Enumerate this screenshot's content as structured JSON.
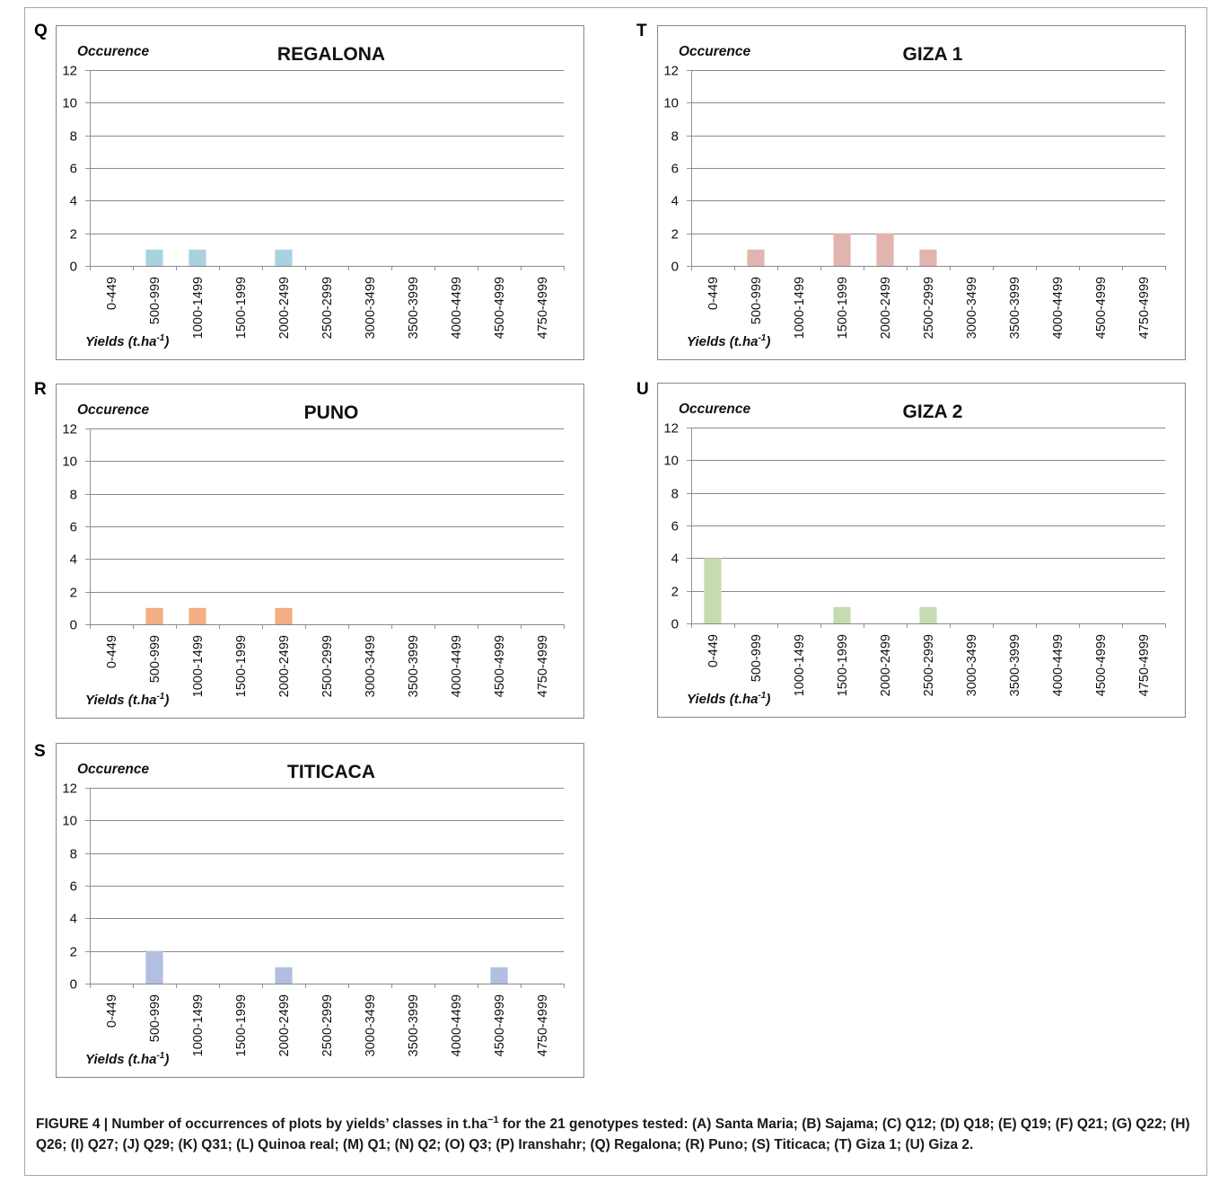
{
  "panels": [
    {
      "letter": "Q"
    },
    {
      "letter": "T"
    },
    {
      "letter": "R"
    },
    {
      "letter": "U"
    },
    {
      "letter": "S"
    }
  ],
  "caption": {
    "prefix": "FIGURE 4 | Number of occurrences of plots by yields’ classes in t.ha",
    "superscript": "−1",
    "rest": " for the 21 genotypes tested: (A) Santa Maria; (B) Sajama; (C) Q12; (D) Q18; (E) Q19; (F) Q21; (G) Q22; (H) Q26; (I) Q27; (J) Q29; (K) Q31; (L) Quinoa real; (M) Q1; (N) Q2; (O) Q3; (P) Iranshahr; (Q) Regalona; (R) Puno; (S) Titicaca; (T) Giza 1; (U) Giza 2."
  },
  "chart_data": [
    {
      "type": "bar",
      "title": "REGALONA",
      "ylabel": "Occurence",
      "xlabel": "Yields (t.ha",
      "xlabel_sup": "-1",
      "xlabel_end": ")",
      "categories": [
        "0-449",
        "500-999",
        "1000-1499",
        "1500-1999",
        "2000-2499",
        "2500-2999",
        "3000-3499",
        "3500-3999",
        "4000-4499",
        "4500-4999",
        "4750-4999"
      ],
      "values": [
        0,
        1,
        1,
        0,
        1,
        0,
        0,
        0,
        0,
        0,
        0
      ],
      "ylim": [
        0,
        12
      ],
      "yticks": [
        0,
        2,
        4,
        6,
        8,
        10,
        12
      ],
      "color": "#a9d2e0",
      "grid": true
    },
    {
      "type": "bar",
      "title": "GIZA 1",
      "ylabel": "Occurence",
      "xlabel": "Yields (t.ha",
      "xlabel_sup": "-1",
      "xlabel_end": ")",
      "categories": [
        "0-449",
        "500-999",
        "1000-1499",
        "1500-1999",
        "2000-2499",
        "2500-2999",
        "3000-3499",
        "3500-3999",
        "4000-4499",
        "4500-4999",
        "4750-4999"
      ],
      "values": [
        0,
        1,
        0,
        2,
        2,
        1,
        0,
        0,
        0,
        0,
        0
      ],
      "ylim": [
        0,
        12
      ],
      "yticks": [
        0,
        2,
        4,
        6,
        8,
        10,
        12
      ],
      "color": "#e2b4b0",
      "grid": true
    },
    {
      "type": "bar",
      "title": "PUNO",
      "ylabel": "Occurence",
      "xlabel": "Yields (t.ha",
      "xlabel_sup": "-1",
      "xlabel_end": ")",
      "categories": [
        "0-449",
        "500-999",
        "1000-1499",
        "1500-1999",
        "2000-2499",
        "2500-2999",
        "3000-3499",
        "3500-3999",
        "4000-4499",
        "4500-4999",
        "4750-4999"
      ],
      "values": [
        0,
        1,
        1,
        0,
        1,
        0,
        0,
        0,
        0,
        0,
        0
      ],
      "ylim": [
        0,
        12
      ],
      "yticks": [
        0,
        2,
        4,
        6,
        8,
        10,
        12
      ],
      "color": "#f4ae84",
      "grid": true
    },
    {
      "type": "bar",
      "title": "GIZA 2",
      "ylabel": "Occurence",
      "xlabel": "Yields (t.ha",
      "xlabel_sup": "-1",
      "xlabel_end": ")",
      "categories": [
        "0-449",
        "500-999",
        "1000-1499",
        "1500-1999",
        "2000-2499",
        "2500-2999",
        "3000-3499",
        "3500-3999",
        "4000-4499",
        "4500-4999",
        "4750-4999"
      ],
      "values": [
        4,
        0,
        0,
        1,
        0,
        1,
        0,
        0,
        0,
        0,
        0
      ],
      "ylim": [
        0,
        12
      ],
      "yticks": [
        0,
        2,
        4,
        6,
        8,
        10,
        12
      ],
      "color": "#c6dcb0",
      "grid": true
    },
    {
      "type": "bar",
      "title": "TITICACA",
      "ylabel": "Occurence",
      "xlabel": "Yields (t.ha",
      "xlabel_sup": "-1",
      "xlabel_end": ")",
      "categories": [
        "0-449",
        "500-999",
        "1000-1499",
        "1500-1999",
        "2000-2499",
        "2500-2999",
        "3000-3499",
        "3500-3999",
        "4000-4499",
        "4500-4999",
        "4750-4999"
      ],
      "values": [
        0,
        2,
        0,
        0,
        1,
        0,
        0,
        0,
        0,
        1,
        0
      ],
      "ylim": [
        0,
        12
      ],
      "yticks": [
        0,
        2,
        4,
        6,
        8,
        10,
        12
      ],
      "color": "#b3bfe0",
      "grid": true
    }
  ]
}
